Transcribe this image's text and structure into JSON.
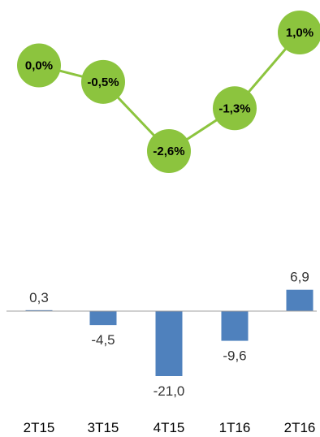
{
  "chart_data": [
    {
      "type": "line",
      "categories": [
        "2T15",
        "3T15",
        "4T15",
        "1T16",
        "2T16"
      ],
      "values": [
        0.0,
        -0.5,
        -2.6,
        -1.3,
        1.0
      ],
      "data_labels": [
        "0,0%",
        "-0,5%",
        "-2,6%",
        "-1,3%",
        "1,0%"
      ],
      "ylim": [
        -3.0,
        1.4
      ],
      "grid": false,
      "colors": {
        "line": "#8cc43e",
        "marker": "#8cc43e"
      }
    },
    {
      "type": "bar",
      "categories": [
        "2T15",
        "3T15",
        "4T15",
        "1T16",
        "2T16"
      ],
      "values": [
        0.3,
        -4.5,
        -21.0,
        -9.6,
        6.9
      ],
      "data_labels": [
        "0,3",
        "-4,5",
        "-21,0",
        "-9,6",
        "6,9"
      ],
      "ylim": [
        -25,
        10
      ],
      "grid": false,
      "colors": {
        "bar": "#4f81bd",
        "axis": "#a0a0a0"
      }
    }
  ]
}
